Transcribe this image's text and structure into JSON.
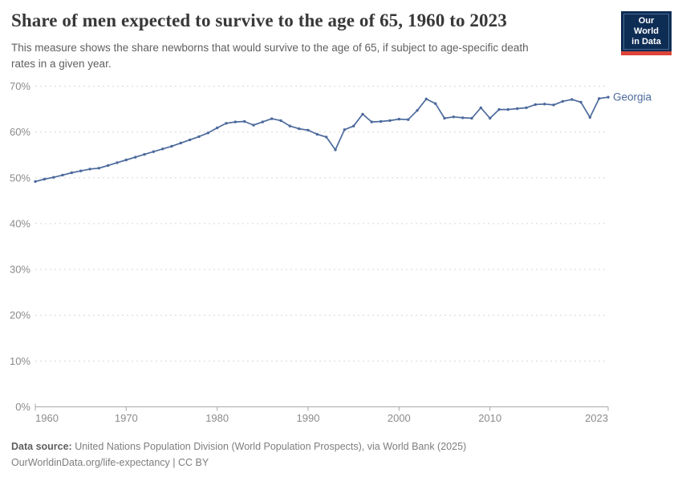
{
  "header": {
    "title": "Share of men expected to survive to the age of 65, 1960 to 2023",
    "subtitle_line1": "This measure shows the share newborns that would survive to the age of 65, if subject to age-specific death",
    "subtitle_line2": "rates in a given year.",
    "logo": {
      "line1": "Our World",
      "line2": "in Data"
    }
  },
  "chart_data": {
    "type": "line",
    "title": "Share of men expected to survive to the age of 65, 1960 to 2023",
    "entity_label": "Georgia",
    "y_tick_suffix": "%",
    "ylim": [
      0,
      70
    ],
    "y_ticks": [
      0,
      10,
      20,
      30,
      40,
      50,
      60,
      70
    ],
    "x_ticks": [
      1960,
      1970,
      1980,
      1990,
      2000,
      2010,
      2023
    ],
    "grid": "horizontal-dashed",
    "legend_position": "end-of-line-label",
    "line_color": "#4C6A9C",
    "years": [
      1960,
      1961,
      1962,
      1963,
      1964,
      1965,
      1966,
      1967,
      1968,
      1969,
      1970,
      1971,
      1972,
      1973,
      1974,
      1975,
      1976,
      1977,
      1978,
      1979,
      1980,
      1981,
      1982,
      1983,
      1984,
      1985,
      1986,
      1987,
      1988,
      1989,
      1990,
      1991,
      1992,
      1993,
      1994,
      1995,
      1996,
      1997,
      1998,
      1999,
      2000,
      2001,
      2002,
      2003,
      2004,
      2005,
      2006,
      2007,
      2008,
      2009,
      2010,
      2011,
      2012,
      2013,
      2014,
      2015,
      2016,
      2017,
      2018,
      2019,
      2020,
      2021,
      2022,
      2023
    ],
    "values": [
      49.2,
      49.7,
      50.1,
      50.6,
      51.1,
      51.5,
      51.9,
      52.1,
      52.7,
      53.3,
      53.9,
      54.5,
      55.1,
      55.7,
      56.3,
      56.9,
      57.6,
      58.3,
      59.0,
      59.8,
      60.9,
      61.9,
      62.2,
      62.3,
      61.5,
      62.2,
      62.9,
      62.5,
      61.3,
      60.7,
      60.4,
      59.5,
      58.9,
      56.1,
      60.5,
      61.3,
      63.9,
      62.2,
      62.3,
      62.5,
      62.8,
      62.7,
      64.7,
      67.2,
      66.2,
      63.0,
      63.3,
      63.1,
      63.0,
      65.3,
      63.0,
      64.9,
      64.9,
      65.1,
      65.3,
      66.0,
      66.1,
      65.9,
      66.7,
      67.1,
      66.5,
      63.2,
      67.3,
      67.6
    ]
  },
  "footer": {
    "source_label": "Data source:",
    "source_text": " United Nations Population Division (World Population Prospects), via World Bank (2025)",
    "url_text": "OurWorldinData.org/life-expectancy",
    "license_text": " | CC BY"
  }
}
